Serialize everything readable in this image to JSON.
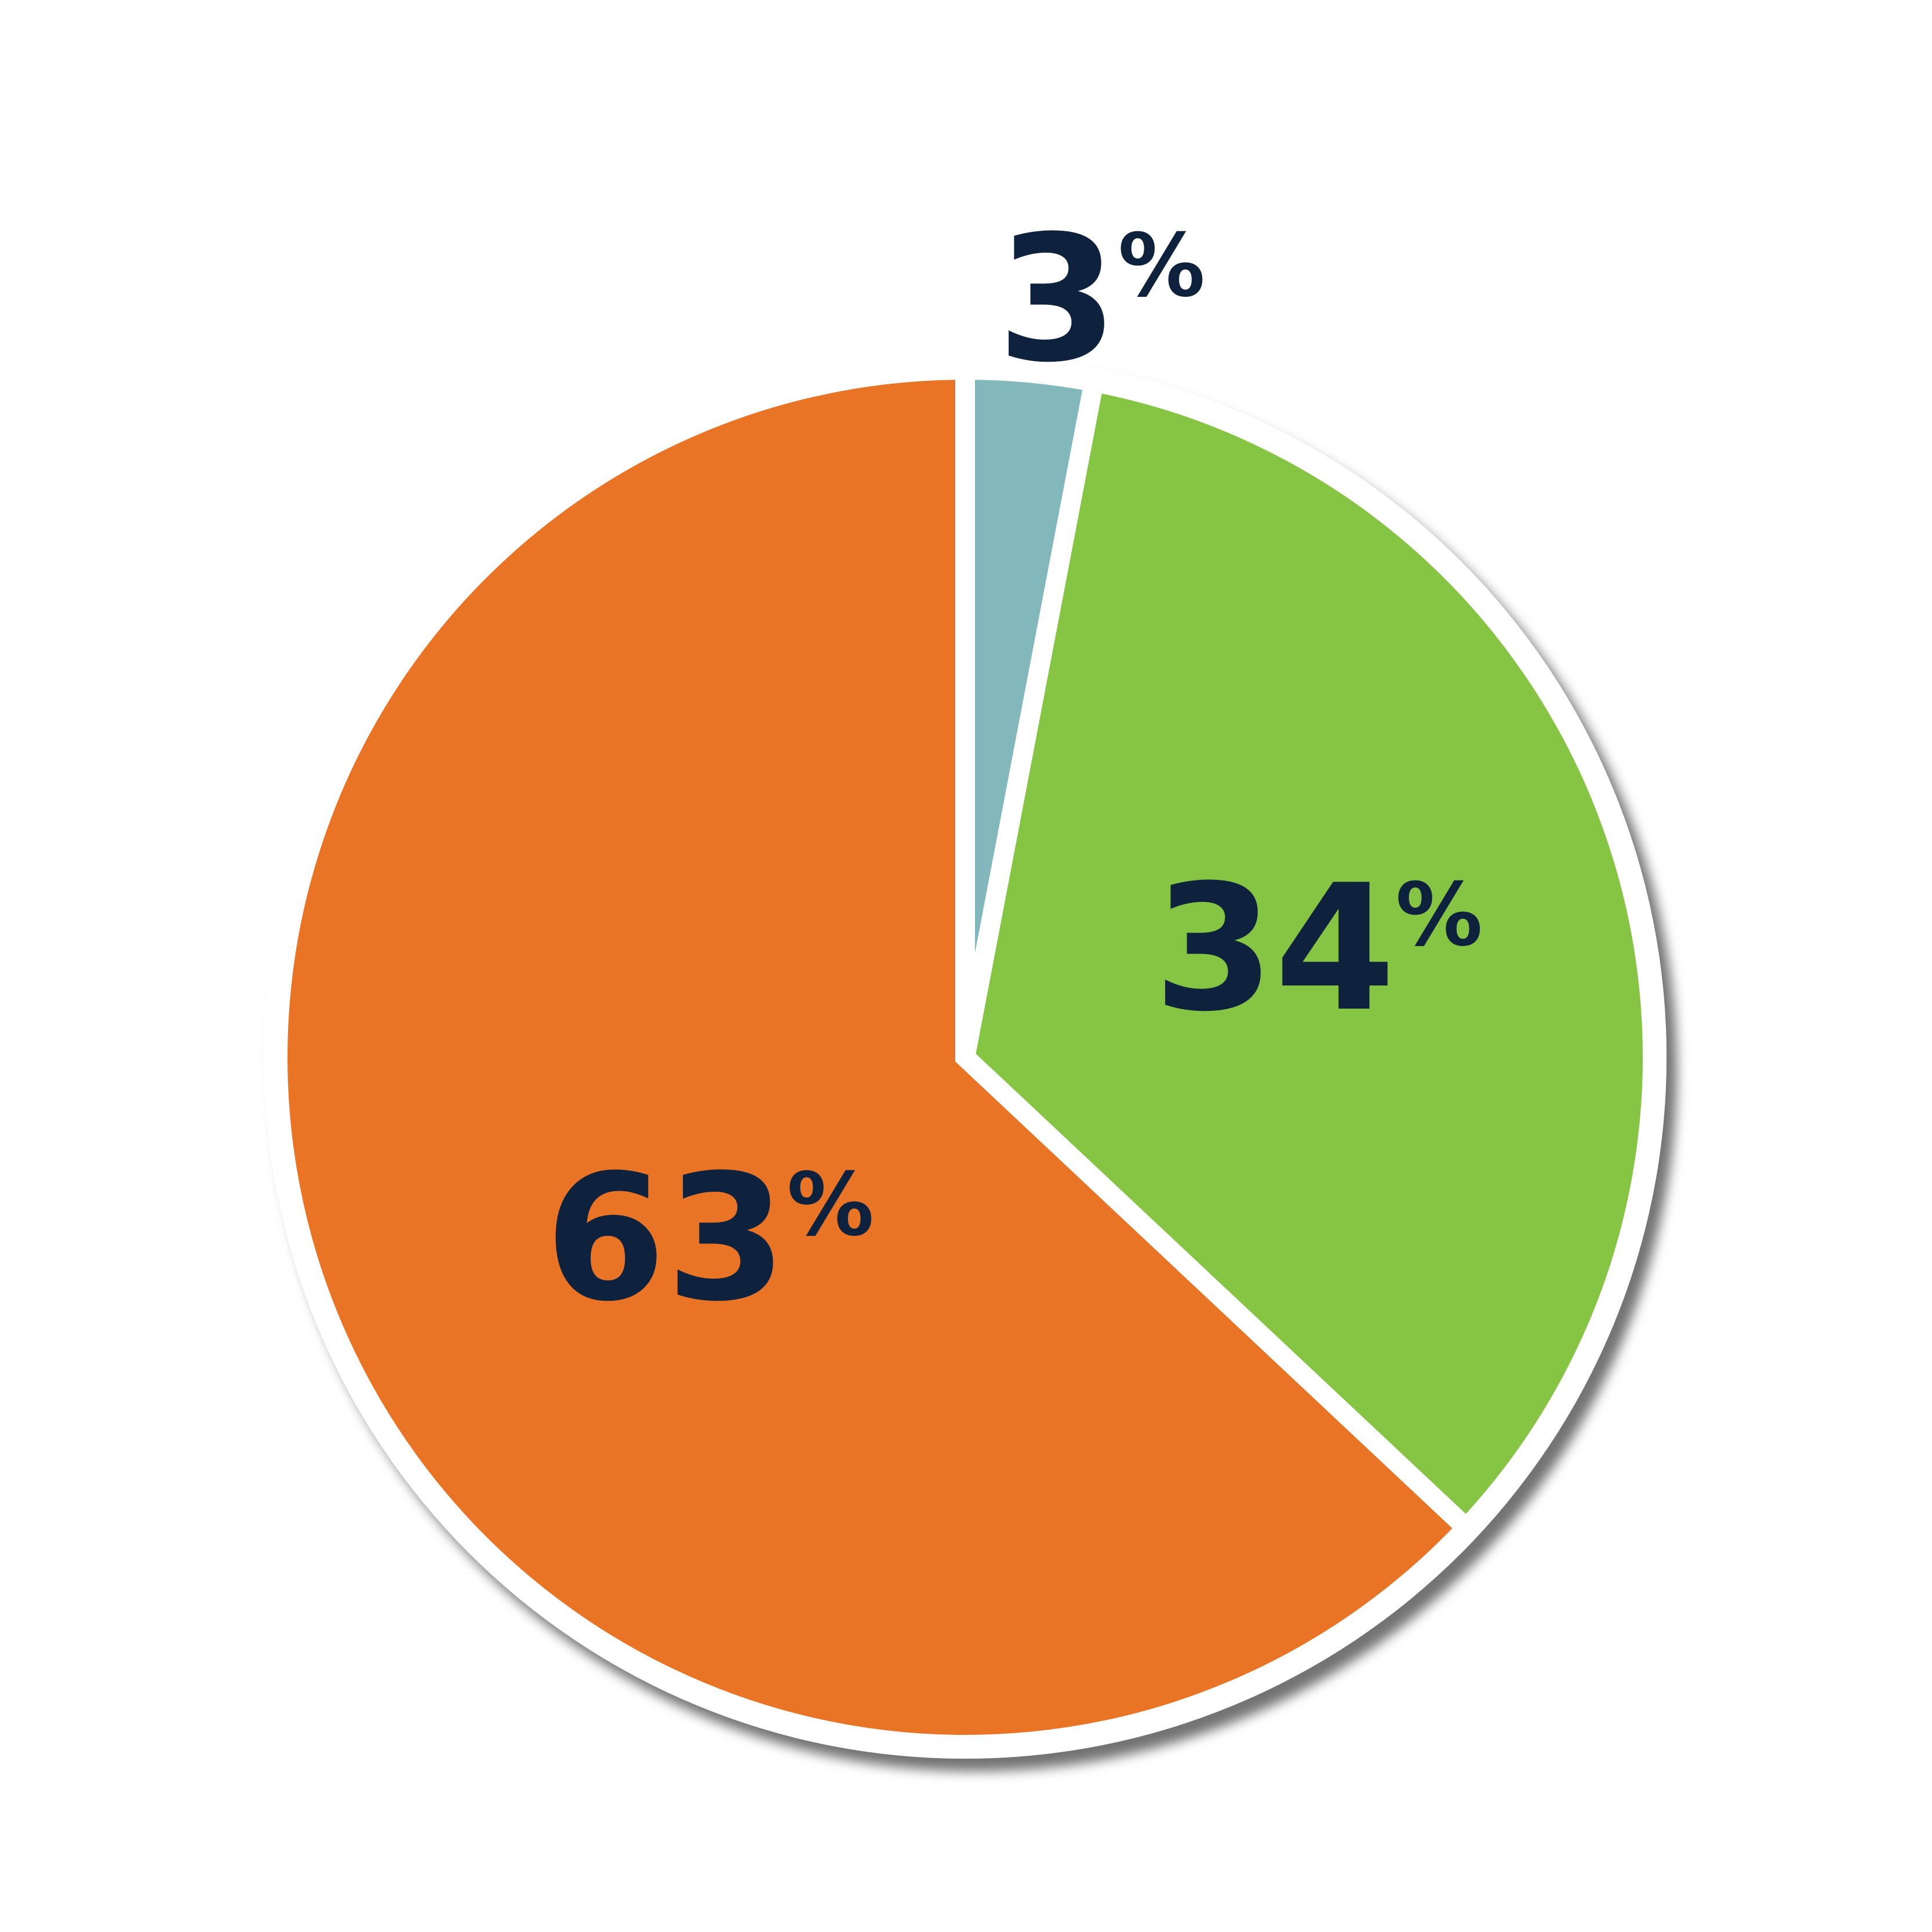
{
  "chart_data": {
    "type": "pie",
    "start_angle": "top",
    "direction": "clockwise",
    "slices": [
      {
        "label": "3%",
        "value": 3,
        "color": "#82b8bc"
      },
      {
        "label": "34%",
        "value": 34,
        "color": "#86c443"
      },
      {
        "label": "63%",
        "value": 63,
        "color": "#ea7426"
      }
    ],
    "label_color": "#0f223d",
    "separator_color": "#ffffff"
  }
}
